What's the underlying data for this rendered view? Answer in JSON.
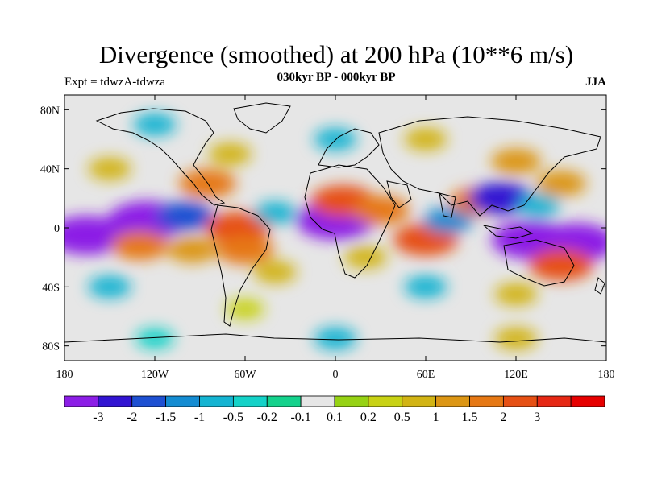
{
  "title": "Divergence (smoothed) at 200 hPa (10**6 m/s)",
  "subtitle": "030kyr BP - 000kyr BP",
  "expt_label": "Expt = tdwzA-tdwza",
  "season_label": "JJA",
  "lat_ticks": [
    {
      "value": 80,
      "label": "80N"
    },
    {
      "value": 40,
      "label": "40N"
    },
    {
      "value": 0,
      "label": "0"
    },
    {
      "value": -40,
      "label": "40S"
    },
    {
      "value": -80,
      "label": "80S"
    }
  ],
  "lon_ticks": [
    {
      "value": -180,
      "label": "180"
    },
    {
      "value": -120,
      "label": "120W"
    },
    {
      "value": -60,
      "label": "60W"
    },
    {
      "value": 0,
      "label": "0"
    },
    {
      "value": 60,
      "label": "60E"
    },
    {
      "value": 120,
      "label": "120E"
    },
    {
      "value": 180,
      "label": "180"
    }
  ],
  "colorbar": {
    "colors": [
      "#8c1ee6",
      "#3214d2",
      "#1e50d2",
      "#148cd2",
      "#14b4d2",
      "#14d2c8",
      "#14d28c",
      "#e6e6e6",
      "#96d214",
      "#c8d214",
      "#d2b414",
      "#dc9614",
      "#e67814",
      "#e65014",
      "#e62814",
      "#e60000"
    ],
    "labels": [
      "-3",
      "-2",
      "-1.5",
      "-1",
      "-0.5",
      "-0.2",
      "-0.1",
      "0.1",
      "0.2",
      "0.5",
      "1",
      "1.5",
      "2",
      "3"
    ]
  },
  "map": {
    "neutral_color": "#e6e6e6",
    "fields": [
      {
        "lon": -165,
        "lat": -5,
        "value": -3
      },
      {
        "lon": -125,
        "lat": 5,
        "value": -3
      },
      {
        "lon": -100,
        "lat": 8,
        "value": -1.5
      },
      {
        "lon": -130,
        "lat": -12,
        "value": 1.5
      },
      {
        "lon": -95,
        "lat": -15,
        "value": 1
      },
      {
        "lon": -65,
        "lat": 0,
        "value": 2
      },
      {
        "lon": -60,
        "lat": -15,
        "value": 1.5
      },
      {
        "lon": -85,
        "lat": 30,
        "value": 1.5
      },
      {
        "lon": -70,
        "lat": 50,
        "value": 0.5
      },
      {
        "lon": -40,
        "lat": 10,
        "value": -0.5
      },
      {
        "lon": -40,
        "lat": -30,
        "value": 0.5
      },
      {
        "lon": 0,
        "lat": 5,
        "value": -3
      },
      {
        "lon": 5,
        "lat": 18,
        "value": 2
      },
      {
        "lon": 30,
        "lat": 12,
        "value": 1.5
      },
      {
        "lon": 20,
        "lat": -20,
        "value": 0.5
      },
      {
        "lon": 60,
        "lat": -8,
        "value": 2
      },
      {
        "lon": 75,
        "lat": 5,
        "value": -1
      },
      {
        "lon": 95,
        "lat": 18,
        "value": 1.5
      },
      {
        "lon": 110,
        "lat": 20,
        "value": -2
      },
      {
        "lon": 120,
        "lat": 45,
        "value": 1
      },
      {
        "lon": 135,
        "lat": 15,
        "value": -0.5
      },
      {
        "lon": 130,
        "lat": -8,
        "value": -3
      },
      {
        "lon": 160,
        "lat": -10,
        "value": -3
      },
      {
        "lon": 150,
        "lat": -25,
        "value": 2
      },
      {
        "lon": 150,
        "lat": 30,
        "value": 1
      },
      {
        "lon": -150,
        "lat": 40,
        "value": 0.5
      },
      {
        "lon": -150,
        "lat": -40,
        "value": -0.5
      },
      {
        "lon": -60,
        "lat": -55,
        "value": 0.2
      },
      {
        "lon": 60,
        "lat": -40,
        "value": -0.5
      },
      {
        "lon": 120,
        "lat": -45,
        "value": 0.5
      },
      {
        "lon": 0,
        "lat": 60,
        "value": -0.5
      },
      {
        "lon": 60,
        "lat": 60,
        "value": 0.5
      },
      {
        "lon": -120,
        "lat": 70,
        "value": -0.5
      },
      {
        "lon": 0,
        "lat": -75,
        "value": -0.5
      },
      {
        "lon": 120,
        "lat": -75,
        "value": 0.5
      },
      {
        "lon": -120,
        "lat": -75,
        "value": -0.2
      }
    ]
  }
}
